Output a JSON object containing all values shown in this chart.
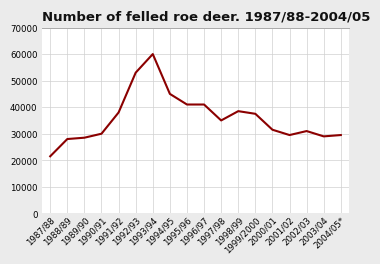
{
  "title": "Number of felled roe deer. 1987/88-2004/05",
  "x_labels": [
    "1987/88",
    "1988/89",
    "1989/90",
    "1990/91",
    "1991/92",
    "1992/93",
    "1993/94",
    "1994/95",
    "1995/96",
    "1996/97",
    "1997/98",
    "1998/99",
    "1999/2000",
    "2000/01",
    "2001/02",
    "2002/03",
    "2003/04",
    "2004/05*"
  ],
  "values": [
    21500,
    28000,
    28500,
    30000,
    38000,
    53000,
    60000,
    45000,
    41000,
    41000,
    35000,
    38500,
    37500,
    31500,
    29500,
    31000,
    29000,
    29500
  ],
  "line_color": "#8b0000",
  "line_width": 1.5,
  "ylim": [
    0,
    70000
  ],
  "yticks": [
    0,
    10000,
    20000,
    30000,
    40000,
    50000,
    60000,
    70000
  ],
  "bg_color": "#ebebeb",
  "plot_bg_color": "#ffffff",
  "title_fontsize": 9.5,
  "tick_fontsize": 6.2,
  "title_fontweight": "bold"
}
